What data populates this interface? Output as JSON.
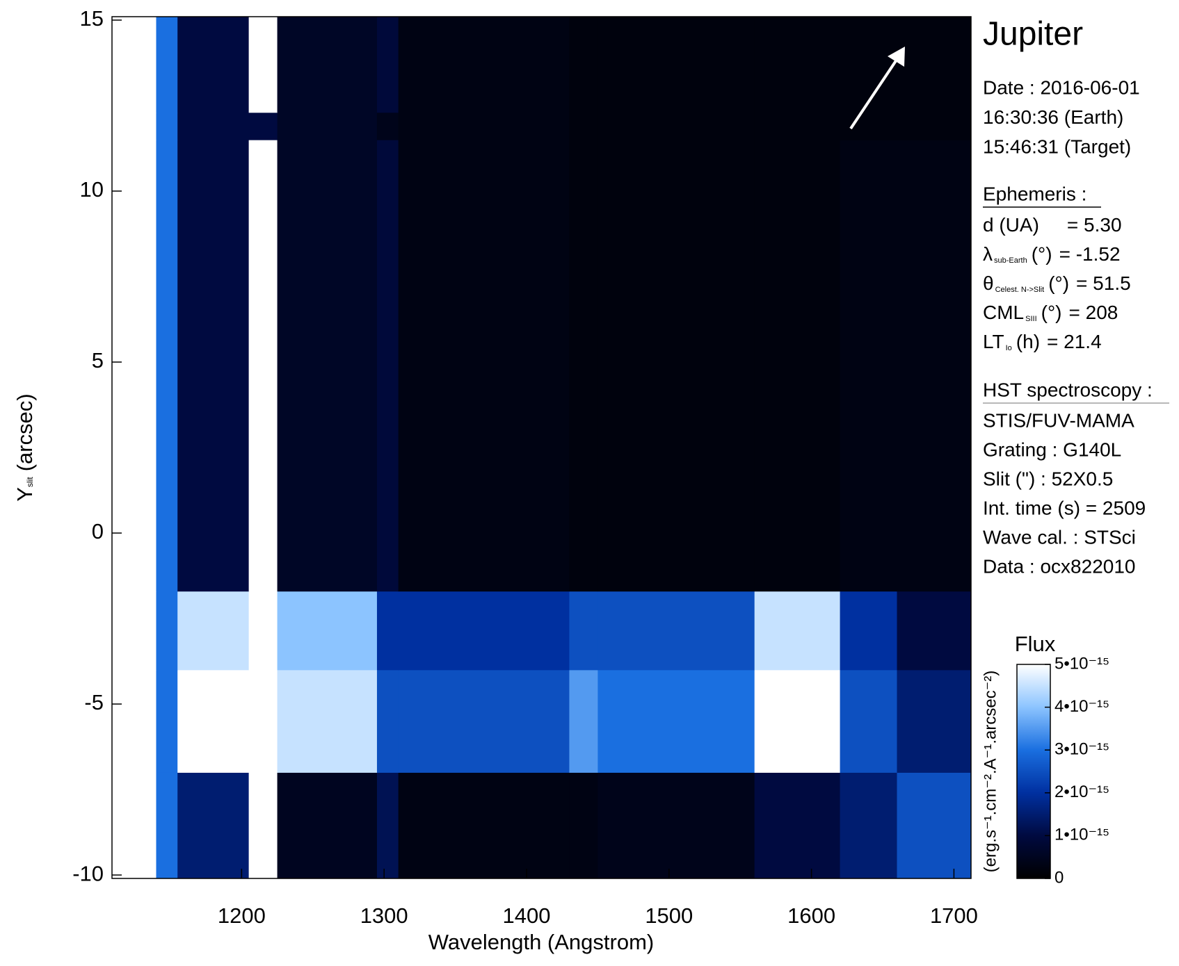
{
  "chart_data": {
    "type": "heatmap",
    "xlabel": "Wavelength (Angstrom)",
    "ylabel": {
      "text": "Y",
      "sub": "slit",
      "unit": "(arcsec)"
    },
    "x": [
      1109,
      1140,
      1155,
      1205,
      1225,
      1295,
      1310,
      1430,
      1450,
      1560,
      1620,
      1660,
      1712
    ],
    "y": [
      -10.1,
      -7,
      -4,
      -1.7,
      11.5,
      12.3,
      15.1
    ],
    "z": [
      [
        5e-15,
        3e-15,
        1.5e-15,
        5e-15,
        5e-16,
        1.2e-15,
        3e-16,
        3e-16,
        4e-16,
        1e-15,
        1.5e-15,
        2.5e-15
      ],
      [
        5e-15,
        3e-15,
        5e-15,
        5e-15,
        4.5e-15,
        2.5e-15,
        2.5e-15,
        3.5e-15,
        3e-15,
        5e-15,
        2.5e-15,
        1.5e-15
      ],
      [
        5e-15,
        3e-15,
        4.5e-15,
        5e-15,
        4e-15,
        2e-15,
        2e-15,
        2.5e-15,
        2.5e-15,
        4.5e-15,
        2e-15,
        1e-15
      ],
      [
        5e-15,
        3e-15,
        1e-15,
        5e-15,
        6e-16,
        9e-16,
        3e-16,
        2e-16,
        2e-16,
        2e-16,
        3e-16,
        3e-16
      ],
      [
        5e-15,
        3e-15,
        1e-15,
        1e-15,
        6e-16,
        4e-16,
        3e-16,
        2e-16,
        2e-16,
        2e-16,
        2e-16,
        2e-16
      ],
      [
        5e-15,
        3e-15,
        1e-15,
        5e-15,
        6e-16,
        9e-16,
        3e-16,
        2e-16,
        2e-16,
        2e-16,
        2e-16,
        2e-16
      ]
    ],
    "xlim": [
      1109,
      1712
    ],
    "ylim": [
      -10.1,
      15.1
    ],
    "xticks": [
      1200,
      1300,
      1400,
      1500,
      1600,
      1700
    ],
    "yticks": [
      -10,
      -5,
      0,
      5,
      10,
      15
    ],
    "colormap": [
      "#000000",
      "#000a40",
      "#0030a0",
      "#1a6fe0",
      "#8cc4ff",
      "#ffffff"
    ],
    "colorbar": {
      "title": "Flux",
      "label": "(erg.s⁻¹.cm⁻².A⁻¹.arcsec⁻²)",
      "lim": [
        0,
        5e-15
      ],
      "ticks": [
        0,
        {
          "value": 1e-15,
          "label": "1•10⁻¹⁵"
        },
        {
          "value": 2e-15,
          "label": "2•10⁻¹⁵"
        },
        {
          "value": 3e-15,
          "label": "3•10⁻¹⁵"
        },
        {
          "value": 4e-15,
          "label": "4•10⁻¹⁵"
        },
        {
          "value": 5e-15,
          "label": "5•10⁻¹⁵"
        }
      ]
    },
    "info": {
      "title": "Jupiter",
      "date": [
        "Date : 2016-06-01",
        "16:30:36 (Earth)",
        "15:46:31 (Target)"
      ],
      "ephemeris": {
        "heading": "Ephemeris :",
        "rows": [
          {
            "name": "d (UA)",
            "value": "= 5.30"
          },
          {
            "name": "λ",
            "sub": "sub-Earth",
            "unit": "(°)",
            "value": "= -1.52"
          },
          {
            "name": "θ",
            "sub": "Celest. N->Slit",
            "unit": "(°)",
            "value": "= 51.5"
          },
          {
            "name": "CML",
            "sub": "SIII",
            "unit": "(°)",
            "value": "= 208"
          },
          {
            "name": "LT",
            "sub": "Io",
            "unit": "(h)",
            "value": "= 21.4"
          }
        ]
      },
      "instrument": {
        "heading": "HST spectroscopy :",
        "rows": [
          "STIS/FUV-MAMA",
          "Grating : G140L",
          "Slit (\") : 52X0.5",
          "Int. time (s) = 2509",
          "Wave cal. : STSci",
          "Data : ocx822010"
        ]
      }
    }
  }
}
